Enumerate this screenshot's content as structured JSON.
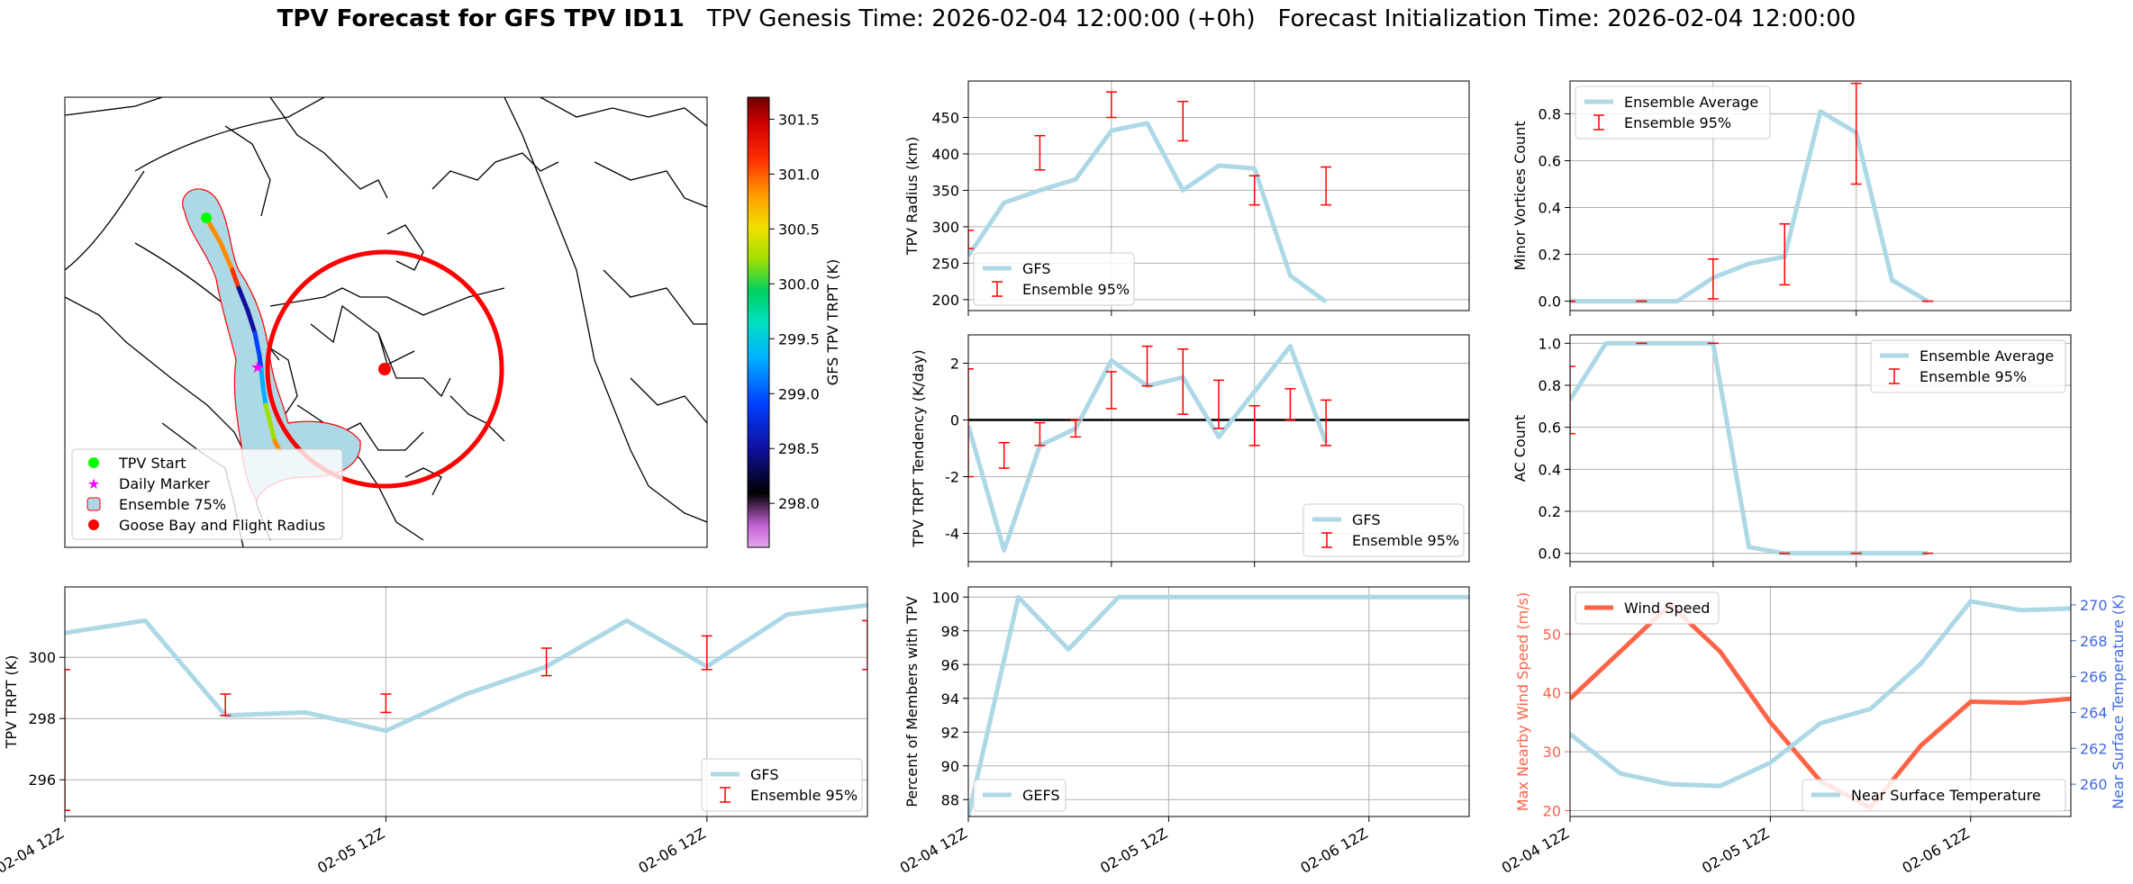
{
  "title": {
    "bold": "TPV Forecast for GFS TPV ID11",
    "genesis": "TPV Genesis Time: 2026-02-04 12:00:00 (+0h)",
    "init": "Forecast Initialization Time: 2026-02-04 12:00:00"
  },
  "colors": {
    "light_blue": "#add8e6",
    "red": "#ff0000",
    "tomato": "#ff6347",
    "royal_blue": "#4169e1",
    "green": "#00ff00",
    "magenta": "#ff00ff"
  },
  "time_ticks": [
    "02-04 12Z",
    "02-05 12Z",
    "02-06 12Z"
  ],
  "map": {
    "legend": [
      "TPV Start",
      "Daily Marker",
      "Ensemble 75%",
      "Goose Bay and Flight Radius"
    ],
    "colorbar_label": "GFS TPV TRPT (K)",
    "colorbar_ticks": [
      "301.5",
      "301.0",
      "300.5",
      "300.0",
      "299.5",
      "299.0",
      "298.5",
      "298.0"
    ]
  },
  "chart_data": [
    {
      "id": "radius",
      "type": "line",
      "ylabel": "TPV Radius (km)",
      "xlim": [
        0,
        14
      ],
      "ylim": [
        185,
        500
      ],
      "yticks": [
        200,
        250,
        300,
        350,
        400,
        450
      ],
      "xticks": [
        0,
        4,
        8
      ],
      "xlabels": [],
      "series": [
        {
          "name": "GFS",
          "x": [
            0,
            1,
            2,
            3,
            4,
            5,
            6,
            7,
            8,
            9,
            10
          ],
          "y": [
            260,
            333,
            350,
            365,
            432,
            442,
            350,
            384,
            380,
            233,
            197
          ]
        }
      ],
      "errors": {
        "name": "Ensemble 95%",
        "x": [
          0,
          2,
          4,
          6,
          8,
          10
        ],
        "low": [
          270,
          378,
          450,
          418,
          330,
          330
        ],
        "high": [
          295,
          425,
          485,
          472,
          370,
          382
        ]
      },
      "legend": [
        "GFS",
        "Ensemble 95%"
      ],
      "legend_pos": "lower-left"
    },
    {
      "id": "minor",
      "type": "line",
      "ylabel": "Minor Vortices Count",
      "xlim": [
        0,
        14
      ],
      "ylim": [
        -0.04,
        0.94
      ],
      "yticks": [
        0.0,
        0.2,
        0.4,
        0.6,
        0.8
      ],
      "xticks": [
        0,
        4,
        8
      ],
      "xlabels": [],
      "series": [
        {
          "name": "Ensemble Average",
          "x": [
            0,
            1,
            2,
            3,
            4,
            5,
            6,
            7,
            8,
            9,
            10
          ],
          "y": [
            0,
            0,
            0,
            0,
            0.1,
            0.16,
            0.19,
            0.81,
            0.72,
            0.09,
            0.0
          ]
        }
      ],
      "errors": {
        "name": "Ensemble 95%",
        "x": [
          0,
          2,
          4,
          6,
          8,
          10
        ],
        "low": [
          0,
          0,
          0.01,
          0.07,
          0.5,
          0
        ],
        "high": [
          0,
          0,
          0.18,
          0.33,
          0.93,
          0
        ]
      },
      "legend": [
        "Ensemble Average",
        "Ensemble 95%"
      ],
      "legend_pos": "upper-left"
    },
    {
      "id": "tendency",
      "type": "line",
      "ylabel": "TPV TRPT Tendency (K/day)",
      "xlim": [
        0,
        14
      ],
      "ylim": [
        -5,
        3
      ],
      "yticks": [
        -4,
        -2,
        0,
        2
      ],
      "xticks": [
        0,
        4,
        8
      ],
      "xlabels": [],
      "series": [
        {
          "name": "GFS",
          "x": [
            0,
            1,
            2,
            3,
            4,
            5,
            6,
            7,
            8,
            9,
            10
          ],
          "y": [
            -0.2,
            -4.6,
            -0.9,
            -0.3,
            2.1,
            1.2,
            1.5,
            -0.6,
            1.0,
            2.6,
            -0.8
          ]
        }
      ],
      "errors": {
        "name": "Ensemble 95%",
        "x": [
          0,
          1,
          2,
          3,
          4,
          5,
          6,
          7,
          8,
          9,
          10
        ],
        "low": [
          -2,
          -1.7,
          -0.9,
          -0.6,
          0.4,
          1.2,
          0.2,
          -0.3,
          -0.9,
          0.0,
          -0.9
        ],
        "high": [
          1.8,
          -0.8,
          -0.1,
          0.0,
          1.7,
          2.6,
          2.5,
          1.4,
          0.5,
          1.1,
          0.7
        ]
      },
      "hline": 0,
      "legend": [
        "GFS",
        "Ensemble 95%"
      ],
      "legend_pos": "lower-right"
    },
    {
      "id": "ac",
      "type": "line",
      "ylabel": "AC Count",
      "xlim": [
        0,
        14
      ],
      "ylim": [
        -0.04,
        1.04
      ],
      "yticks": [
        0.0,
        0.2,
        0.4,
        0.6,
        0.8,
        1.0
      ],
      "xticks": [
        0,
        4,
        8
      ],
      "xlabels": [],
      "series": [
        {
          "name": "Ensemble Average",
          "x": [
            0,
            1,
            2,
            3,
            4,
            5,
            6,
            7,
            8,
            9,
            10
          ],
          "y": [
            0.73,
            1,
            1,
            1,
            1,
            0.03,
            0,
            0,
            0,
            0,
            0
          ]
        }
      ],
      "errors": {
        "name": "Ensemble 95%",
        "x": [
          0,
          2,
          4,
          6,
          8,
          10
        ],
        "low": [
          0.57,
          1,
          1,
          0,
          0,
          0
        ],
        "high": [
          0.89,
          1,
          1,
          0,
          0,
          0
        ]
      },
      "legend": [
        "Ensemble Average",
        "Ensemble 95%"
      ],
      "legend_pos": "upper-right"
    },
    {
      "id": "trpt",
      "type": "line",
      "ylabel": "TPV TRPT (K)",
      "xlim": [
        0,
        10
      ],
      "ylim": [
        294.8,
        302.3
      ],
      "yticks": [
        296,
        298,
        300
      ],
      "xticks": [
        0,
        4,
        8
      ],
      "xlabels": [
        "02-04 12Z",
        "02-05 12Z",
        "02-06 12Z"
      ],
      "series": [
        {
          "name": "GFS",
          "x": [
            0,
            1,
            2,
            3,
            4,
            5,
            6,
            7,
            8,
            9,
            10
          ],
          "y": [
            300.8,
            301.2,
            298.1,
            298.2,
            297.6,
            298.8,
            299.7,
            301.2,
            299.7,
            301.4,
            301.7
          ]
        }
      ],
      "errors": {
        "name": "Ensemble 95%",
        "x": [
          0,
          2,
          4,
          6,
          8,
          10
        ],
        "low": [
          295.0,
          298.1,
          298.2,
          299.4,
          299.6,
          299.6
        ],
        "high": [
          299.6,
          298.8,
          298.8,
          300.3,
          300.7,
          301.2
        ]
      },
      "legend": [
        "GFS",
        "Ensemble 95%"
      ],
      "legend_pos": "lower-right"
    },
    {
      "id": "percent",
      "type": "line",
      "ylabel": "Percent of Members with TPV",
      "xlim": [
        0,
        10
      ],
      "ylim": [
        87,
        100.6
      ],
      "yticks": [
        88,
        90,
        92,
        94,
        96,
        98,
        100
      ],
      "xticks": [
        0,
        4,
        8
      ],
      "xlabels": [
        "02-04 12Z",
        "02-05 12Z",
        "02-06 12Z"
      ],
      "series": [
        {
          "name": "GEFS",
          "x": [
            0,
            1,
            2,
            3,
            4,
            5,
            6,
            7,
            8,
            9,
            10
          ],
          "y": [
            87,
            100,
            96.9,
            100,
            100,
            100,
            100,
            100,
            100,
            100,
            100
          ]
        }
      ],
      "legend": [
        "GEFS"
      ],
      "legend_pos": "lower-left"
    },
    {
      "id": "wind",
      "type": "line",
      "ylabel": "Max Nearby Wind Speed (m/s)",
      "ylabel2": "Near Surface Temperature (K)",
      "xlim": [
        0,
        10
      ],
      "ylim": [
        19,
        58
      ],
      "ylim2": [
        258.2,
        271
      ],
      "yticks": [
        20,
        30,
        40,
        50
      ],
      "yticks2": [
        260,
        262,
        264,
        266,
        268,
        270
      ],
      "xticks": [
        0,
        4,
        8
      ],
      "xlabels": [
        "02-04 12Z",
        "02-05 12Z",
        "02-06 12Z"
      ],
      "series": [
        {
          "name": "Wind Speed",
          "axis": "left",
          "x": [
            0,
            1,
            2,
            3,
            4,
            5,
            6,
            7,
            8,
            9,
            10
          ],
          "y": [
            39,
            47,
            55,
            47,
            35,
            25,
            20.5,
            31,
            38.5,
            38.3,
            39
          ]
        },
        {
          "name": "Near Surface Temperature",
          "axis": "right",
          "x": [
            0,
            1,
            2,
            3,
            4,
            5,
            6,
            7,
            8,
            9,
            10
          ],
          "y": [
            262.8,
            260.6,
            260.0,
            259.9,
            261.2,
            263.4,
            264.2,
            266.7,
            270.2,
            269.7,
            269.8
          ]
        }
      ],
      "legend": [
        "Wind Speed",
        "Near Surface Temperature"
      ]
    }
  ]
}
